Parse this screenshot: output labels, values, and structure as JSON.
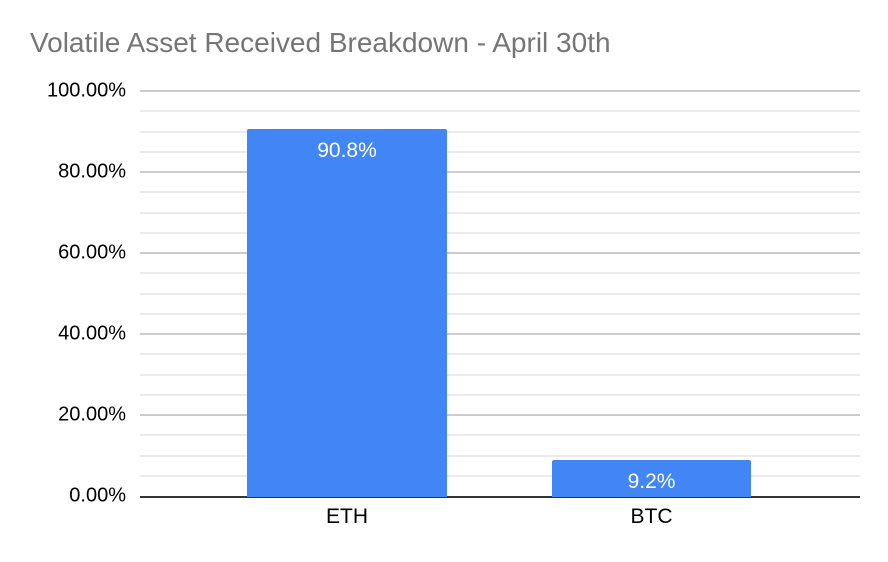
{
  "chart_data": {
    "type": "bar",
    "title": "Volatile Asset Received Breakdown - April 30th",
    "categories": [
      "ETH",
      "BTC"
    ],
    "values": [
      90.8,
      9.2
    ],
    "data_labels": [
      "90.8%",
      "9.2%"
    ],
    "xlabel": "",
    "ylabel": "",
    "ylim": [
      0,
      100
    ],
    "y_ticks": [
      {
        "value": 0,
        "label": "0.00%"
      },
      {
        "value": 20,
        "label": "20.00%"
      },
      {
        "value": 40,
        "label": "40.00%"
      },
      {
        "value": 60,
        "label": "60.00%"
      },
      {
        "value": 80,
        "label": "80.00%"
      },
      {
        "value": 100,
        "label": "100.00%"
      }
    ],
    "major_gridline_step": 20,
    "minor_gridline_step": 5,
    "grid": true,
    "legend": "none",
    "colors": {
      "bar": "#4285F4",
      "title_text": "#757575",
      "axis_text": "#000000",
      "major_gridline": "#cccccc",
      "minor_gridline": "#ebebeb",
      "axis_line": "#333333",
      "data_label_text": "#ffffff",
      "background": "#ffffff"
    }
  }
}
